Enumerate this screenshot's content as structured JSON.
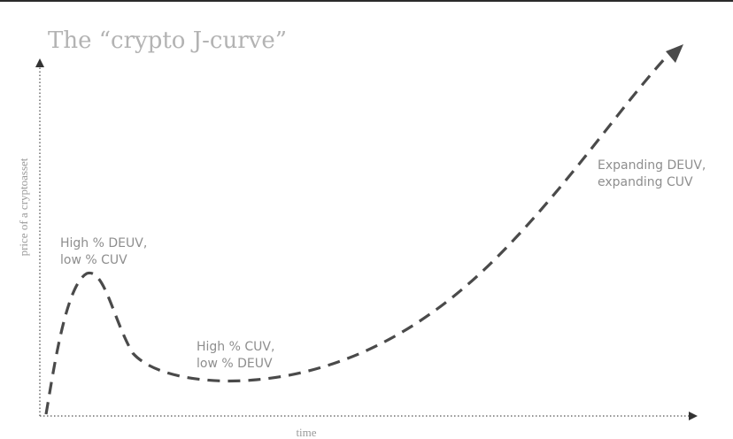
{
  "title": "The “crypto J-curve”",
  "axes": {
    "x_label": "time",
    "y_label": "price of a cryptoasset"
  },
  "annotations": {
    "peak": [
      "High % DEUV,",
      "low % CUV"
    ],
    "trough": [
      "High % CUV,",
      "low % DEUV"
    ],
    "growth": [
      "Expanding DEUV,",
      "expanding CUV"
    ]
  },
  "colors": {
    "curve": "#4a4a4a",
    "axis": "#555555",
    "text": "#8e8e8e"
  }
}
